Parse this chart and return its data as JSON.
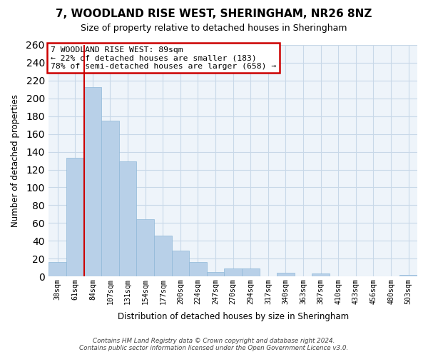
{
  "title": "7, WOODLAND RISE WEST, SHERINGHAM, NR26 8NZ",
  "subtitle": "Size of property relative to detached houses in Sheringham",
  "xlabel": "Distribution of detached houses by size in Sheringham",
  "ylabel": "Number of detached properties",
  "bar_labels": [
    "38sqm",
    "61sqm",
    "84sqm",
    "107sqm",
    "131sqm",
    "154sqm",
    "177sqm",
    "200sqm",
    "224sqm",
    "247sqm",
    "270sqm",
    "294sqm",
    "317sqm",
    "340sqm",
    "363sqm",
    "387sqm",
    "410sqm",
    "433sqm",
    "456sqm",
    "480sqm",
    "503sqm"
  ],
  "bar_values": [
    16,
    133,
    213,
    175,
    129,
    64,
    46,
    29,
    16,
    5,
    9,
    9,
    0,
    4,
    0,
    3,
    0,
    0,
    0,
    0,
    2
  ],
  "bar_color": "#b8d0e8",
  "bar_edge_color": "#8fb8d8",
  "vline_color": "#cc0000",
  "vline_bar_index": 2,
  "ylim": [
    0,
    260
  ],
  "yticks": [
    0,
    20,
    40,
    60,
    80,
    100,
    120,
    140,
    160,
    180,
    200,
    220,
    240,
    260
  ],
  "annotation_title": "7 WOODLAND RISE WEST: 89sqm",
  "annotation_line1": "← 22% of detached houses are smaller (183)",
  "annotation_line2": "78% of semi-detached houses are larger (658) →",
  "annotation_box_color": "#ffffff",
  "annotation_box_edge": "#cc0000",
  "footer_line1": "Contains HM Land Registry data © Crown copyright and database right 2024.",
  "footer_line2": "Contains public sector information licensed under the Open Government Licence v3.0.",
  "background_color": "#ffffff",
  "grid_color": "#c8d8e8",
  "plot_bg_color": "#eef4fa"
}
